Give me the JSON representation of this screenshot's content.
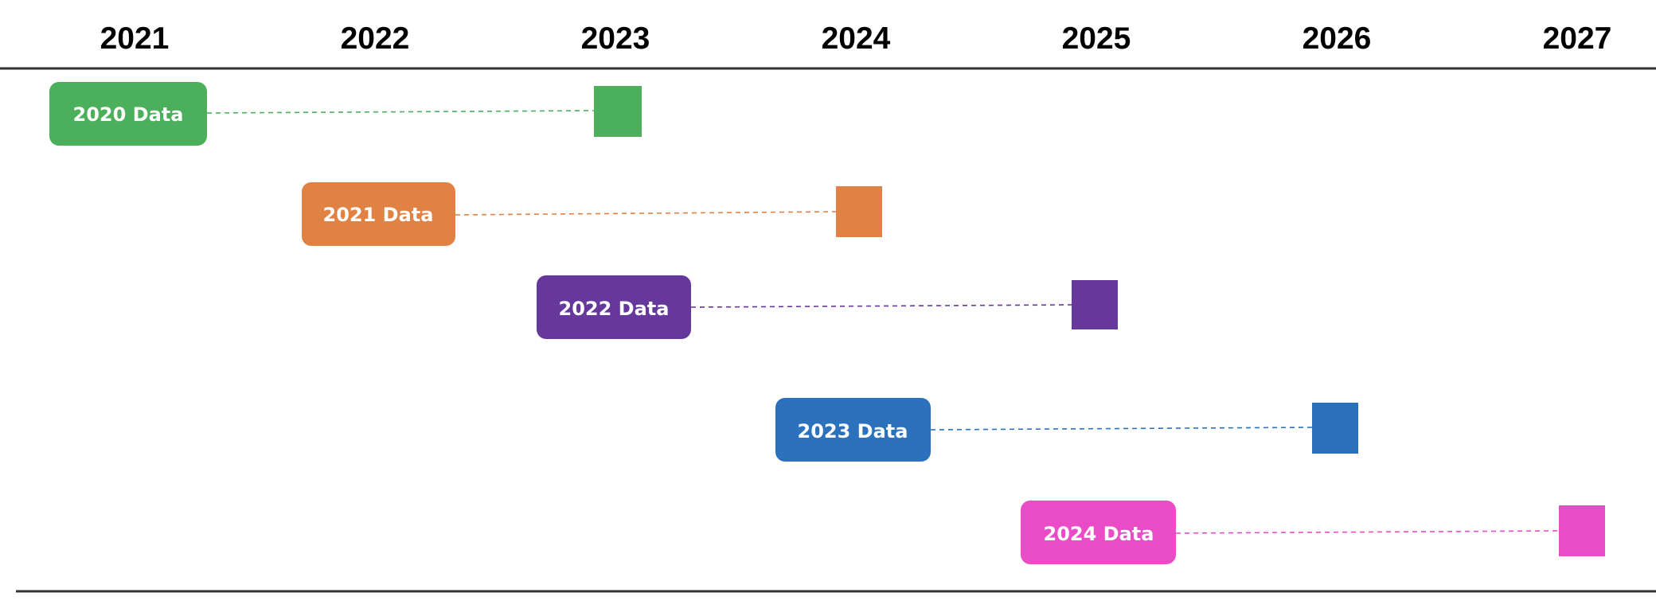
{
  "timeline": {
    "years": [
      "2021",
      "2022",
      "2023",
      "2024",
      "2025",
      "2026",
      "2027"
    ],
    "rows": [
      {
        "label": "2020 Data",
        "start_year": 2021,
        "end_year": 2023,
        "color": "#4CAF5B"
      },
      {
        "label": "2021 Data",
        "start_year": 2022,
        "end_year": 2024,
        "color": "#E08244"
      },
      {
        "label": "2022 Data",
        "start_year": 2023,
        "end_year": 2025,
        "color": "#67389B"
      },
      {
        "label": "2023 Data",
        "start_year": 2024,
        "end_year": 2026,
        "color": "#2C71BC"
      },
      {
        "label": "2024 Data",
        "start_year": 2025,
        "end_year": 2027,
        "color": "#EA4CC7"
      }
    ]
  }
}
